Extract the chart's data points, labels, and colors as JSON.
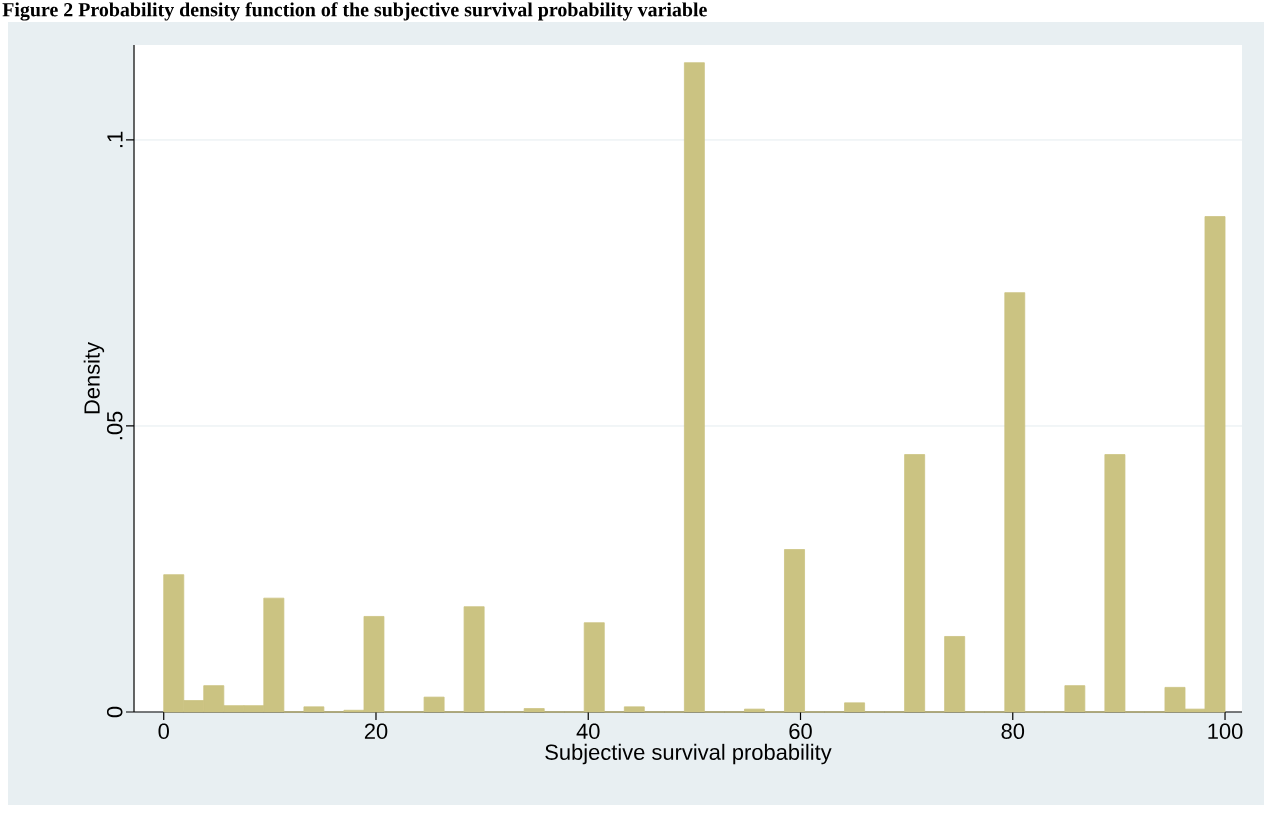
{
  "chart_data": {
    "type": "histogram",
    "title": "Figure 2 Probability density function of the subjective survival probability variable",
    "xlabel": "Subjective survival probability",
    "ylabel": "Density",
    "bins": [
      0,
      1.89,
      3.77,
      5.66,
      7.55,
      9.43,
      11.32,
      13.21,
      15.09,
      16.98,
      18.87,
      20.75,
      22.64,
      24.53,
      26.42,
      28.3,
      30.19,
      32.08,
      33.96,
      35.85,
      37.74,
      39.62,
      41.51,
      43.4,
      45.28,
      47.17,
      49.06,
      50.94,
      52.83,
      54.72,
      56.6,
      58.49,
      60.38,
      62.26,
      64.15,
      66.04,
      67.92,
      69.81,
      71.7,
      73.58,
      75.47,
      77.36,
      79.25,
      81.13,
      83.02,
      84.91,
      86.79,
      88.68,
      90.57,
      92.45,
      94.34,
      96.23,
      98.11,
      100
    ],
    "values": [
      0.024,
      0.002,
      0.0046,
      0.0011,
      0.0011,
      0.0199,
      0,
      0.0009,
      0,
      0.0003,
      0.0167,
      0,
      0,
      0.0026,
      0,
      0.0184,
      0,
      0,
      0.0006,
      0,
      0,
      0.0156,
      0,
      0.0009,
      0,
      0,
      0.1135,
      0,
      0,
      0.0005,
      0,
      0.0284,
      0,
      0,
      0.0016,
      0,
      0,
      0.045,
      0,
      0.0132,
      0,
      0,
      0.0733,
      0,
      0,
      0.0046,
      0,
      0.045,
      0,
      0,
      0.0043,
      0.0005,
      0.0866
    ],
    "color": "#cbc382",
    "xlim": [
      -2.8,
      101.6
    ],
    "ylim": [
      0,
      0.1166
    ],
    "xticks": [
      0,
      20,
      40,
      60,
      80,
      100
    ],
    "yticks": [
      0,
      {
        "value": 0.05,
        "label": ".05"
      },
      {
        "value": 0.1,
        "label": ".1"
      }
    ],
    "grid": "y"
  }
}
